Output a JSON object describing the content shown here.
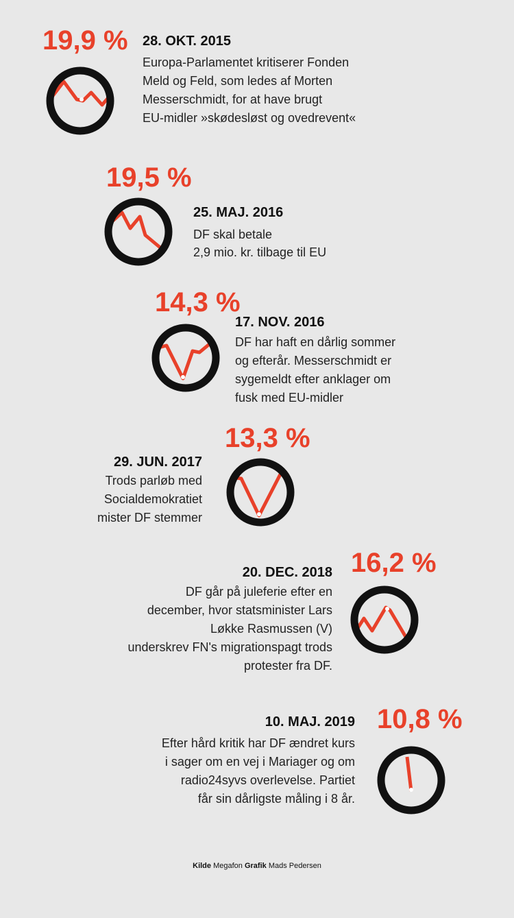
{
  "events": [
    {
      "percent": "19,9 %",
      "date": "28. OKT. 2015",
      "lines": [
        "Europa-Parlamentet kritiserer Fonden",
        "Meld og Feld, som ledes af  Morten",
        "Messerschmidt, for at have brugt",
        "EU-midler »skødesløst og ovedrevent«"
      ]
    },
    {
      "percent": "19,5 %",
      "date": "25. MAJ. 2016",
      "lines": [
        "DF skal betale",
        "2,9 mio. kr. tilbage til EU"
      ]
    },
    {
      "percent": "14,3 %",
      "date": "17. NOV. 2016",
      "lines": [
        "DF har haft en dårlig sommer",
        "og efterår. Messerschmidt er",
        "sygemeldt efter anklager om",
        "fusk med EU-midler"
      ]
    },
    {
      "percent": "13,3 %",
      "date": "29. JUN. 2017",
      "lines": [
        "Trods parløb med",
        "Socialdemokratiet",
        "mister DF stemmer"
      ]
    },
    {
      "percent": "16,2 %",
      "date": "20. DEC. 2018",
      "lines": [
        "DF går på juleferie efter en",
        "december, hvor statsminister Lars",
        "Løkke Rasmussen (V)",
        "underskrev FN's migrationspagt trods",
        "protester fra DF."
      ]
    },
    {
      "percent": "10,8 %",
      "date": "10. MAJ. 2019",
      "lines": [
        "Efter hård kritik har DF ændret kurs",
        "i sager om en vej i Mariager og om",
        "radio24syvs overlevelse. Partiet",
        "får sin dårligste måling i 8 år."
      ]
    }
  ],
  "footer": {
    "source_label": "Kilde",
    "source": "Megafon",
    "graphic_label": "Grafik",
    "graphic": "Mads Pedersen"
  }
}
